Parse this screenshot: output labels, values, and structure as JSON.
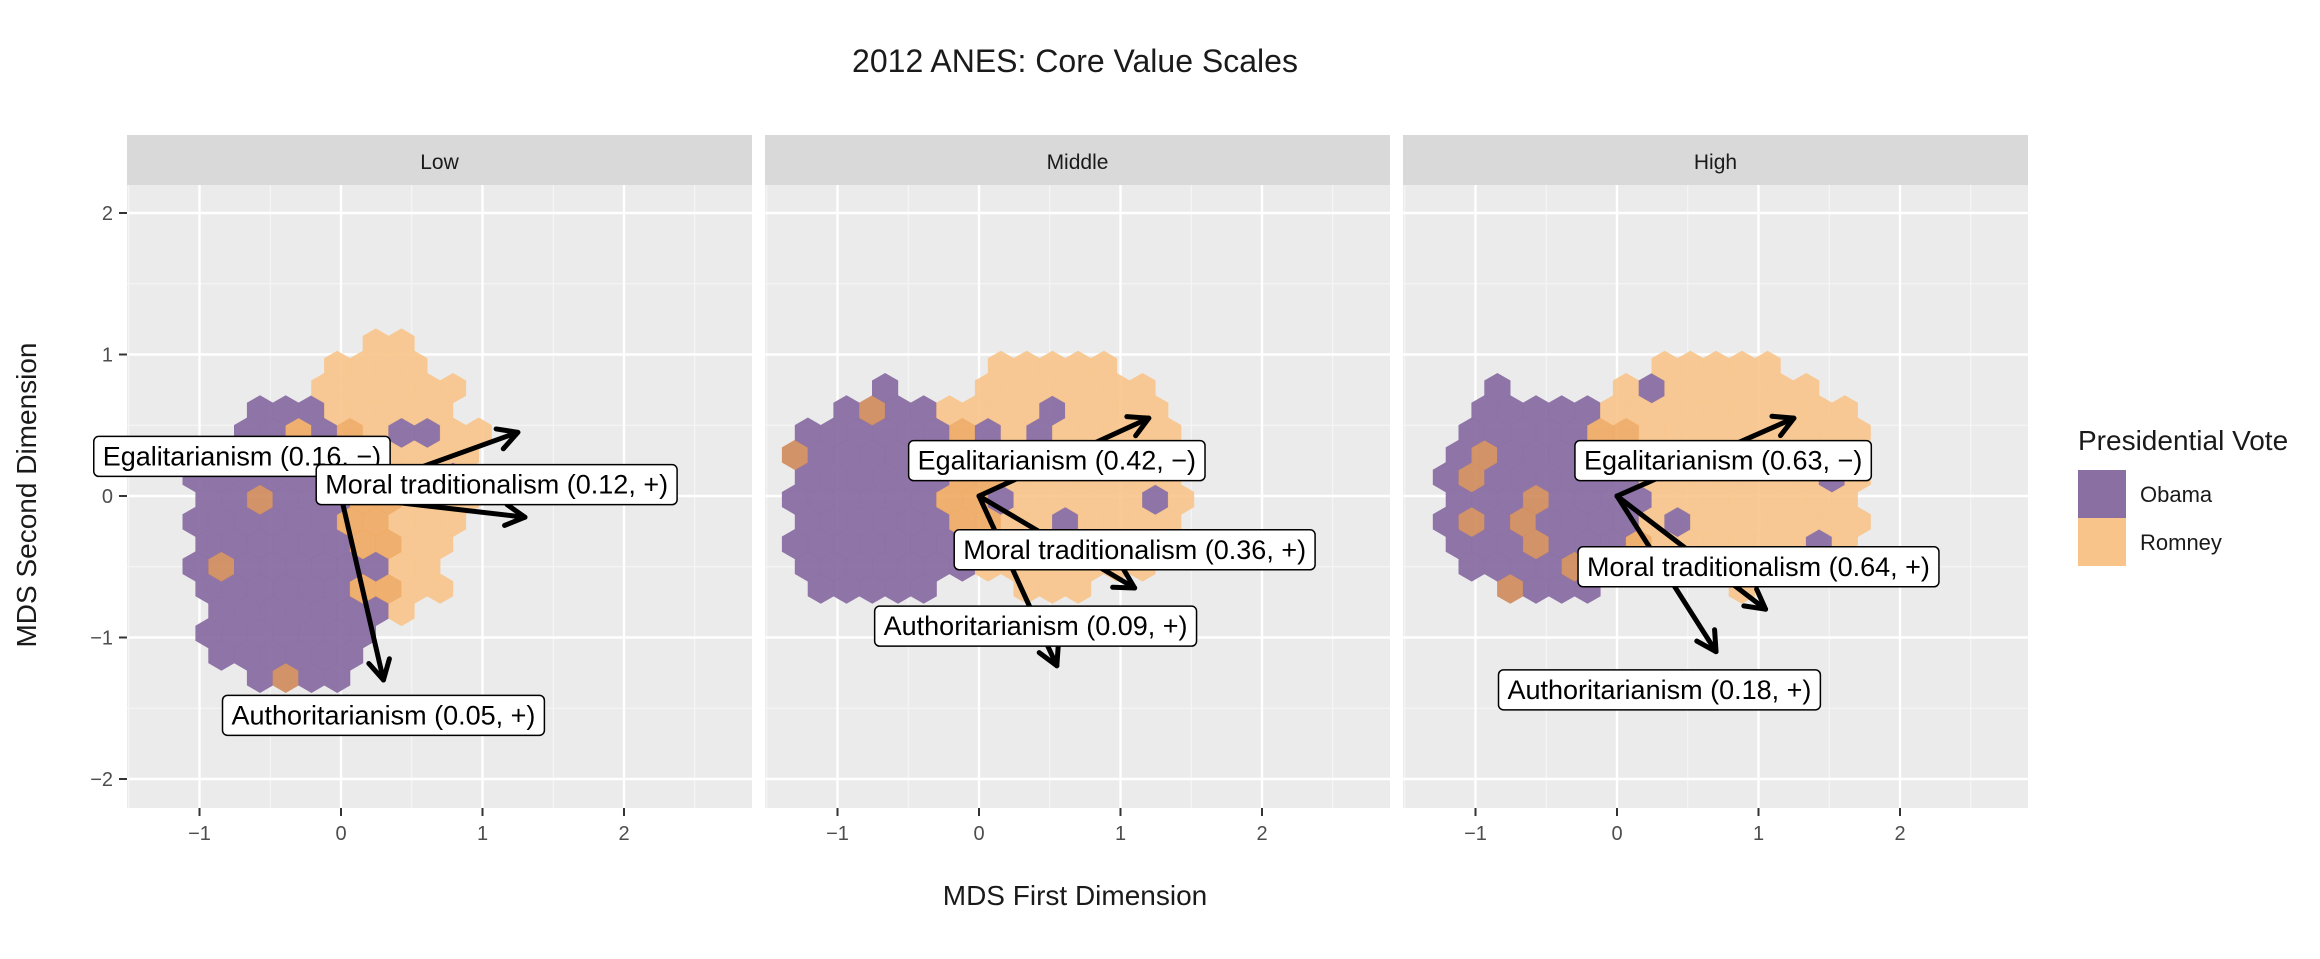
{
  "chart_data": {
    "type": "hexbin-scatter",
    "title": "2012 ANES: Core Value Scales",
    "xlabel": "MDS First Dimension",
    "ylabel": "MDS Second Dimension",
    "xlim": [
      -1.5,
      2.8
    ],
    "ylim": [
      -2.2,
      2.2
    ],
    "x_ticks": [
      -1,
      0,
      1,
      2
    ],
    "x_tick_labels": [
      "−1",
      "0",
      "1",
      "2"
    ],
    "y_ticks": [
      2,
      1,
      0,
      -1,
      -2
    ],
    "y_tick_labels": [
      "2",
      "1",
      "0",
      "−1",
      "−2"
    ],
    "grid": true,
    "legend": {
      "title": "Presidential Vote",
      "position": "right",
      "entries": [
        {
          "name": "Obama",
          "color": "#8a6fa3"
        },
        {
          "name": "Romney",
          "color": "#f8c48a"
        }
      ]
    },
    "facets": [
      {
        "strip": "Low",
        "cloud": {
          "obama_center": [
            -0.35,
            -0.35
          ],
          "obama_radius": [
            0.75,
            1.05
          ],
          "romney_center": [
            0.3,
            0.15
          ],
          "romney_radius": [
            0.65,
            0.95
          ]
        },
        "vectors": [
          {
            "name": "Egalitarianism",
            "label": "Egalitarianism (0.16, −)",
            "x": 1.25,
            "y": 0.45,
            "label_at": [
              -0.7,
              0.28
            ]
          },
          {
            "name": "Moral traditionalism",
            "label": "Moral traditionalism (0.12, +)",
            "x": 1.3,
            "y": -0.15,
            "label_at": [
              1.1,
              0.08
            ]
          },
          {
            "name": "Authoritarianism",
            "label": "Authoritarianism (0.05, +)",
            "x": 0.3,
            "y": -1.3,
            "label_at": [
              0.3,
              -1.55
            ]
          }
        ]
      },
      {
        "strip": "Middle",
        "cloud": {
          "obama_center": [
            -0.7,
            -0.05
          ],
          "obama_radius": [
            0.8,
            0.75
          ],
          "romney_center": [
            0.55,
            0.15
          ],
          "romney_radius": [
            0.95,
            0.85
          ]
        },
        "vectors": [
          {
            "name": "Egalitarianism",
            "label": "Egalitarianism (0.42, −)",
            "x": 1.2,
            "y": 0.55,
            "label_at": [
              0.55,
              0.25
            ]
          },
          {
            "name": "Moral traditionalism",
            "label": "Moral traditionalism (0.36, +)",
            "x": 1.1,
            "y": -0.65,
            "label_at": [
              1.1,
              -0.38
            ]
          },
          {
            "name": "Authoritarianism",
            "label": "Authoritarianism (0.09, +)",
            "x": 0.55,
            "y": -1.2,
            "label_at": [
              0.4,
              -0.92
            ]
          }
        ]
      },
      {
        "strip": "High",
        "cloud": {
          "obama_center": [
            -0.5,
            0.0
          ],
          "obama_radius": [
            0.75,
            0.75
          ],
          "romney_center": [
            0.75,
            0.2
          ],
          "romney_radius": [
            1.0,
            0.8
          ]
        },
        "vectors": [
          {
            "name": "Egalitarianism",
            "label": "Egalitarianism (0.63, −)",
            "x": 1.25,
            "y": 0.55,
            "label_at": [
              0.75,
              0.25
            ]
          },
          {
            "name": "Moral traditionalism",
            "label": "Moral traditionalism (0.64, +)",
            "x": 1.05,
            "y": -0.8,
            "label_at": [
              1.0,
              -0.5
            ]
          },
          {
            "name": "Authoritarianism",
            "label": "Authoritarianism (0.18, +)",
            "x": 0.7,
            "y": -1.1,
            "label_at": [
              0.3,
              -1.37
            ]
          }
        ]
      }
    ]
  }
}
